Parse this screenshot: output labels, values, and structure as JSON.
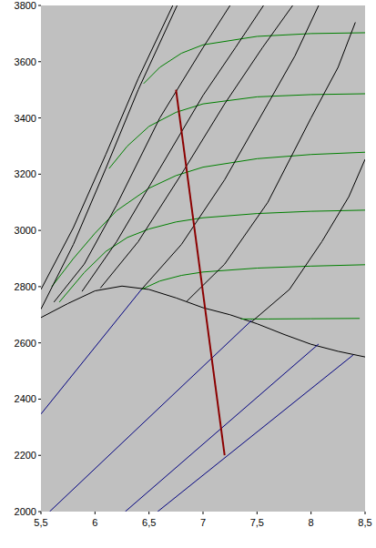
{
  "chart_data": {
    "type": "line",
    "xlim": [
      5.5,
      8.5
    ],
    "ylim": [
      2000,
      3800
    ],
    "xticks": [
      {
        "value": 5.5,
        "label": "5,5"
      },
      6,
      {
        "value": 6.5,
        "label": "6,5"
      },
      7,
      {
        "value": 7.5,
        "label": "7,5"
      },
      8,
      {
        "value": 8.5,
        "label": "8,5"
      }
    ],
    "yticks": [
      2000,
      2200,
      2400,
      2600,
      2800,
      3000,
      3200,
      3400,
      3600,
      3800
    ],
    "grid": false,
    "series": [
      {
        "color": "#000000",
        "x": [
          5.5,
          5.75,
          6.0,
          6.25,
          6.5,
          6.75,
          7.0,
          7.25,
          7.5,
          7.75,
          8.0,
          8.25,
          8.5
        ],
        "values": [
          2690,
          2740,
          2785,
          2802,
          2790,
          2760,
          2725,
          2700,
          2668,
          2630,
          2595,
          2570,
          2550
        ]
      },
      {
        "color": "#008000",
        "x": [
          7.35,
          7.6,
          8.0,
          8.45
        ],
        "values": [
          2685,
          2685,
          2686,
          2687
        ]
      },
      {
        "color": "#008000",
        "x": [
          6.43,
          6.6,
          6.8,
          7.0,
          7.5,
          8.0,
          8.5
        ],
        "values": [
          2790,
          2820,
          2840,
          2852,
          2866,
          2873,
          2878
        ]
      },
      {
        "color": "#008000",
        "x": [
          5.67,
          5.9,
          6.1,
          6.3,
          6.5,
          6.75,
          7.0,
          7.5,
          8.0,
          8.5
        ],
        "values": [
          2745,
          2850,
          2925,
          2975,
          3005,
          3030,
          3045,
          3060,
          3068,
          3072
        ]
      },
      {
        "color": "#008000",
        "x": [
          5.6,
          5.8,
          6.0,
          6.2,
          6.5,
          6.75,
          7.0,
          7.5,
          8.0,
          8.5
        ],
        "values": [
          2800,
          2900,
          2990,
          3070,
          3150,
          3195,
          3225,
          3255,
          3270,
          3278
        ]
      },
      {
        "color": "#008000",
        "x": [
          6.13,
          6.3,
          6.5,
          6.75,
          7.0,
          7.5,
          8.0,
          8.5
        ],
        "values": [
          3220,
          3300,
          3370,
          3420,
          3450,
          3475,
          3483,
          3486
        ]
      },
      {
        "color": "#008000",
        "x": [
          6.45,
          6.6,
          6.8,
          7.0,
          7.5,
          8.0,
          8.5
        ],
        "values": [
          3522,
          3580,
          3630,
          3660,
          3690,
          3700,
          3703
        ]
      },
      {
        "color": "#000000",
        "x": [
          5.5,
          5.8,
          6.1,
          6.4,
          6.76
        ],
        "values": [
          2720,
          2950,
          3220,
          3500,
          3800
        ]
      },
      {
        "color": "#000000",
        "x": [
          5.5,
          5.8,
          6.1,
          6.4,
          6.72
        ],
        "values": [
          2790,
          3010,
          3270,
          3540,
          3800
        ]
      },
      {
        "color": "#000000",
        "x": [
          5.62,
          5.9,
          6.2,
          6.6,
          7.0,
          7.25
        ],
        "values": [
          2745,
          2880,
          3090,
          3400,
          3650,
          3800
        ]
      },
      {
        "color": "#000000",
        "x": [
          5.88,
          6.2,
          6.6,
          7.0,
          7.3,
          7.56
        ],
        "values": [
          2783,
          2960,
          3220,
          3480,
          3650,
          3800
        ]
      },
      {
        "color": "#000000",
        "x": [
          6.05,
          6.4,
          6.8,
          7.2,
          7.55,
          7.83
        ],
        "values": [
          2795,
          2960,
          3200,
          3450,
          3650,
          3800
        ]
      },
      {
        "color": "#000000",
        "x": [
          6.43,
          6.8,
          7.2,
          7.6,
          7.85,
          8.07
        ],
        "values": [
          2790,
          2950,
          3180,
          3450,
          3620,
          3800
        ]
      },
      {
        "color": "#000000",
        "x": [
          6.85,
          7.2,
          7.6,
          8.0,
          8.25,
          8.41
        ],
        "values": [
          2748,
          2880,
          3100,
          3400,
          3580,
          3740
        ]
      },
      {
        "color": "#000000",
        "x": [
          7.45,
          7.8,
          8.1,
          8.35,
          8.5
        ],
        "values": [
          2675,
          2790,
          2960,
          3120,
          3253
        ]
      },
      {
        "color": "#000080",
        "x": [
          5.5,
          6.43
        ],
        "values": [
          2347,
          2790
        ]
      },
      {
        "color": "#000080",
        "x": [
          5.58,
          7.45
        ],
        "values": [
          2000,
          2680
        ]
      },
      {
        "color": "#000080",
        "x": [
          6.28,
          8.07
        ],
        "values": [
          2000,
          2596
        ]
      },
      {
        "color": "#000080",
        "x": [
          6.58,
          8.39
        ],
        "values": [
          2000,
          2557
        ]
      },
      {
        "color": "#8b0000",
        "x": [
          6.75,
          7.2
        ],
        "values": [
          3500,
          2200
        ]
      }
    ]
  }
}
